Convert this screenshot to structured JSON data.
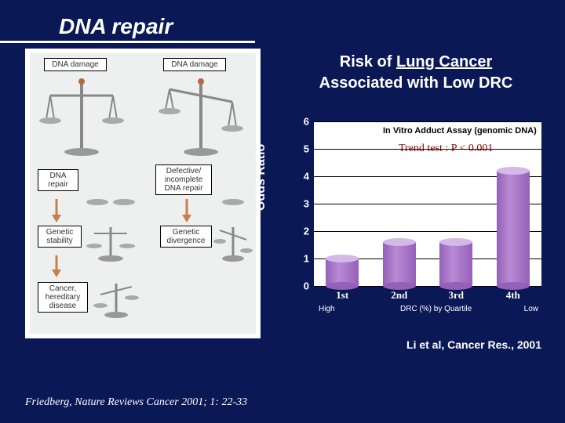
{
  "title": "DNA repair",
  "subtitle_line1_a": "Risk of ",
  "subtitle_line1_b": "Lung Cancer",
  "subtitle_line2": "Associated with Low DRC",
  "left_citation": "Friedberg, Nature Reviews Cancer 2001; 1: 22-33",
  "right_citation": "Li et al, Cancer Res., 2001",
  "diagram": {
    "top_left": "DNA damage",
    "top_right": "DNA damage",
    "mid_left": "DNA\nrepair",
    "mid_right": "Defective/\nincomplete\nDNA repair",
    "bot_left1": "Genetic\nstability",
    "bot_right1": "Genetic\ndivergence",
    "bot_left2": "Cancer,\nhereditary\ndisease"
  },
  "chart": {
    "ylabel": "Odds Ratio",
    "ymax": 6,
    "yticks": [
      0,
      1,
      2,
      3,
      4,
      5,
      6
    ],
    "note1": "In Vitro Adduct Assay (genomic DNA)",
    "note2": "Trend test :  P < 0.001",
    "categories": [
      "1st",
      "2nd",
      "3rd",
      "4th"
    ],
    "values": [
      1.0,
      1.6,
      1.6,
      4.2
    ],
    "bar_fill": "#b88bd4",
    "bar_fill_dark": "#9560b8",
    "bar_top": "#d4b8e8",
    "x_axis_left": "High",
    "x_axis_right": "Low",
    "x_axis_middle": "DRC (%) by Quartile"
  }
}
